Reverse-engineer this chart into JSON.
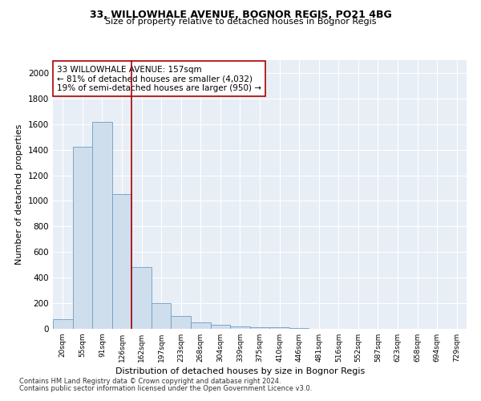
{
  "title": "33, WILLOWHALE AVENUE, BOGNOR REGIS, PO21 4BG",
  "subtitle": "Size of property relative to detached houses in Bognor Regis",
  "xlabel": "Distribution of detached houses by size in Bognor Regis",
  "ylabel": "Number of detached properties",
  "footnote1": "Contains HM Land Registry data © Crown copyright and database right 2024.",
  "footnote2": "Contains public sector information licensed under the Open Government Licence v3.0.",
  "annotation_line1": "33 WILLOWHALE AVENUE: 157sqm",
  "annotation_line2": "← 81% of detached houses are smaller (4,032)",
  "annotation_line3": "19% of semi-detached houses are larger (950) →",
  "bar_color": "#cfdeed",
  "bar_edge_color": "#6b9dc2",
  "vline_color": "#aa0000",
  "vline_x_index": 4,
  "background_color": "#e8eef5",
  "categories": [
    "20sqm",
    "55sqm",
    "91sqm",
    "126sqm",
    "162sqm",
    "197sqm",
    "233sqm",
    "268sqm",
    "304sqm",
    "339sqm",
    "375sqm",
    "410sqm",
    "446sqm",
    "481sqm",
    "516sqm",
    "552sqm",
    "587sqm",
    "623sqm",
    "658sqm",
    "694sqm",
    "729sqm"
  ],
  "values": [
    75,
    1425,
    1620,
    1050,
    480,
    200,
    100,
    50,
    30,
    20,
    15,
    10,
    5,
    3,
    2,
    1,
    1,
    1,
    0,
    0,
    0
  ],
  "ylim": [
    0,
    2100
  ],
  "yticks": [
    0,
    200,
    400,
    600,
    800,
    1000,
    1200,
    1400,
    1600,
    1800,
    2000
  ]
}
